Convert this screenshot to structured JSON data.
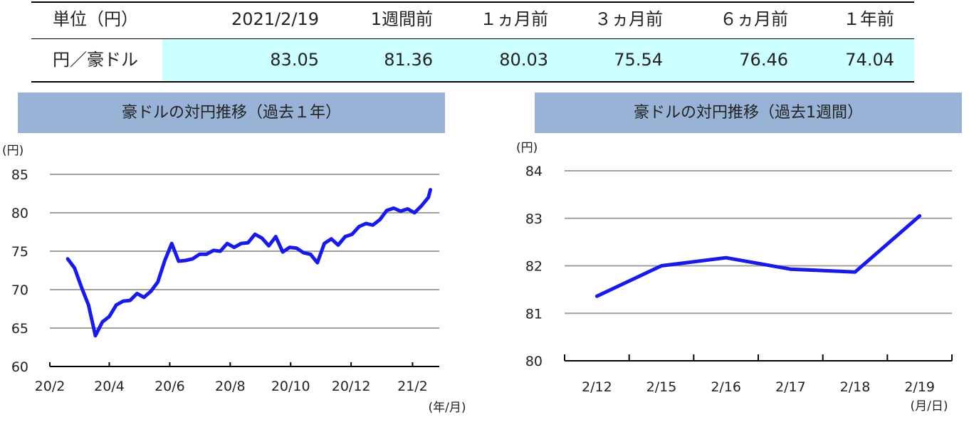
{
  "table": {
    "headers": [
      "単位（円）",
      "2021/2/19",
      "1週間前",
      "１ヵ月前",
      "３ヵ月前",
      "６ヵ月前",
      "１年前"
    ],
    "row_label": "円／豪ドル",
    "values": [
      "83.05",
      "81.36",
      "80.03",
      "75.54",
      "76.46",
      "74.04"
    ]
  },
  "chart_data": [
    {
      "type": "line",
      "title": "豪ドルの対円推移（過去１年）",
      "ylabel": "(円)",
      "xlabel": "(年/月)",
      "ylim": [
        60,
        85
      ],
      "yticks": [
        "60",
        "65",
        "70",
        "75",
        "80",
        "85"
      ],
      "xtick_labels": [
        "20/2",
        "20/4",
        "20/6",
        "20/8",
        "20/10",
        "20/12",
        "21/2"
      ],
      "grid": true,
      "color": "#1a1ae6",
      "series": [
        {
          "x": [
            "20/2/19",
            "20/2/26",
            "20/3/4",
            "20/3/11",
            "20/3/18",
            "20/3/25",
            "20/4/1",
            "20/4/8",
            "20/4/15",
            "20/4/22",
            "20/4/29",
            "20/5/6",
            "20/5/13",
            "20/5/20",
            "20/5/27",
            "20/6/3",
            "20/6/10",
            "20/6/17",
            "20/6/24",
            "20/7/1",
            "20/7/8",
            "20/7/15",
            "20/7/22",
            "20/7/29",
            "20/8/5",
            "20/8/12",
            "20/8/19",
            "20/8/26",
            "20/9/2",
            "20/9/9",
            "20/9/16",
            "20/9/23",
            "20/9/30",
            "20/10/7",
            "20/10/14",
            "20/10/21",
            "20/10/28",
            "20/11/4",
            "20/11/11",
            "20/11/18",
            "20/11/25",
            "20/12/2",
            "20/12/9",
            "20/12/16",
            "20/12/23",
            "20/12/30",
            "21/1/6",
            "21/1/13",
            "21/1/20",
            "21/1/27",
            "21/2/3",
            "21/2/10",
            "21/2/17",
            "21/2/19"
          ],
          "values": [
            74.0,
            72.8,
            70.3,
            68.0,
            64.0,
            65.8,
            66.5,
            68.0,
            68.5,
            68.6,
            69.5,
            69.0,
            69.8,
            71.0,
            73.8,
            76.0,
            73.7,
            73.8,
            74.0,
            74.6,
            74.6,
            75.1,
            75.0,
            76.0,
            75.5,
            76.0,
            76.1,
            77.2,
            76.7,
            75.7,
            76.9,
            74.9,
            75.5,
            75.4,
            74.8,
            74.6,
            73.5,
            76.0,
            76.6,
            75.8,
            76.9,
            77.2,
            78.2,
            78.6,
            78.4,
            79.1,
            80.3,
            80.6,
            80.2,
            80.5,
            80.0,
            80.9,
            82.0,
            83.0
          ]
        }
      ]
    },
    {
      "type": "line",
      "title": "豪ドルの対円推移（過去1週間）",
      "ylabel": "(円)",
      "xlabel": "(月/日)",
      "ylim": [
        80,
        84
      ],
      "yticks": [
        "80",
        "81",
        "82",
        "83",
        "84"
      ],
      "categories": [
        "2/12",
        "2/15",
        "2/16",
        "2/17",
        "2/18",
        "2/19"
      ],
      "grid": true,
      "color": "#1a1ae6",
      "series": [
        {
          "values": [
            81.36,
            82.0,
            82.17,
            81.93,
            81.87,
            83.05
          ]
        }
      ]
    }
  ]
}
